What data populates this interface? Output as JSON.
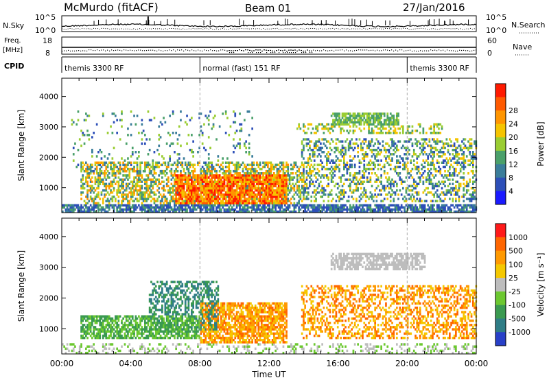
{
  "header": {
    "station": "McMurdo (fitACF)",
    "beam": "Beam 01",
    "date": "27/Jan/2016"
  },
  "noise_panel": {
    "left_label": "N.Sky",
    "left_ticks": [
      "10^5",
      "10^0"
    ],
    "right_label": "N.Search",
    "right_ticks": [
      "10^5",
      "10^0"
    ]
  },
  "freq_panel": {
    "left_label_1": "Freq.",
    "left_label_2": "[MHz]",
    "left_ticks": [
      "18",
      "8"
    ],
    "right_label": "Nave",
    "right_ticks": [
      "60",
      "0"
    ]
  },
  "cpid_panel": {
    "label": "CPID",
    "segments": [
      {
        "text": "themis 3300 RF",
        "start": 0,
        "end": 8
      },
      {
        "text": "normal (fast) 151 RF",
        "start": 8,
        "end": 20
      },
      {
        "text": "themis 3300 RF",
        "start": 20,
        "end": 24
      }
    ]
  },
  "chart_data": [
    {
      "type": "heatmap",
      "name": "power",
      "ylabel": "Slant Range [km]",
      "ylim": [
        180,
        4600
      ],
      "yticks": [
        1000,
        2000,
        3000,
        4000
      ],
      "colorbar": {
        "label": "Power [dB]",
        "ticks": [
          "4",
          "8",
          "12",
          "16",
          "20",
          "24",
          "28"
        ],
        "colors": [
          "#1a1aff",
          "#2d4fb8",
          "#3a7d9a",
          "#4aa06a",
          "#9acd32",
          "#f5c400",
          "#ff9500",
          "#ff5a00",
          "#ff1a00"
        ]
      }
    },
    {
      "type": "heatmap",
      "name": "velocity",
      "ylabel": "Slant Range [km]",
      "ylim": [
        180,
        4600
      ],
      "yticks": [
        1000,
        2000,
        3000,
        4000
      ],
      "colorbar": {
        "label": "Velocity [m s⁻¹]",
        "ticks": [
          "1000",
          "500",
          "100",
          "25",
          "-25",
          "-100",
          "-500",
          "-1000"
        ],
        "colors": [
          "#2840c8",
          "#2f7d86",
          "#3a9a50",
          "#6cc830",
          "#bdbdbd",
          "#f5c800",
          "#ff9900",
          "#ff6600",
          "#ff1a1a"
        ]
      }
    }
  ],
  "xaxis": {
    "label": "Time UT",
    "ticks": [
      "00:00",
      "04:00",
      "08:00",
      "12:00",
      "16:00",
      "20:00",
      "00:00"
    ],
    "range_hours": [
      0,
      24
    ]
  }
}
